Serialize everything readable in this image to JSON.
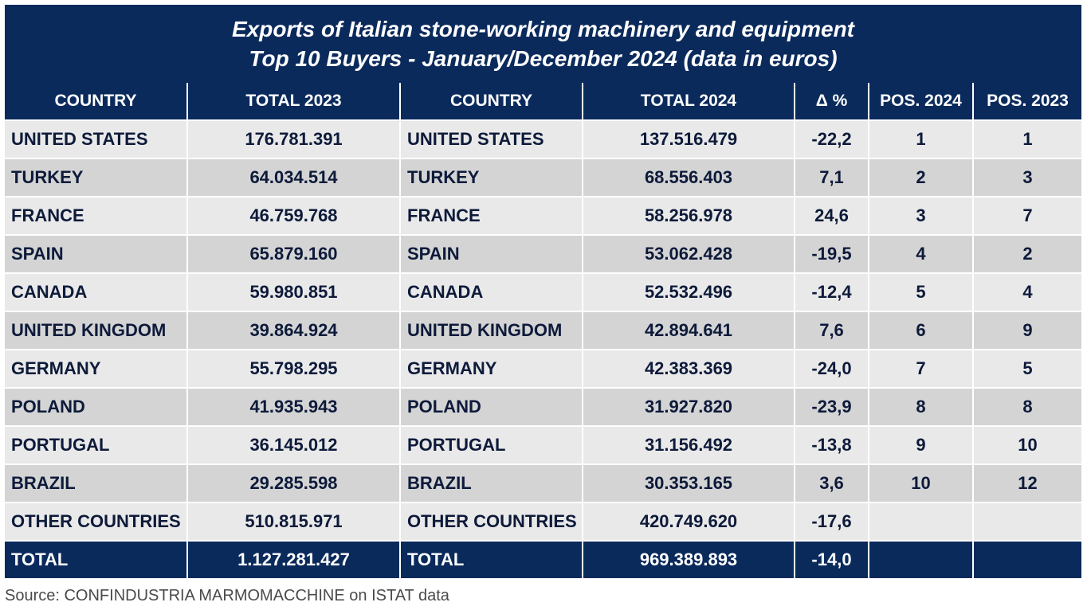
{
  "title_line1": "Exports of Italian stone-working machinery and equipment",
  "title_line2": "Top 10 Buyers - January/December 2024 (data in euros)",
  "source": "Source: CONFINDUSTRIA MARMOMACCHINE on ISTAT data",
  "colors": {
    "header_bg": "#0b2a5c",
    "row_light": "#e9e9e9",
    "row_dark": "#d4d4d4",
    "text_dark": "#0d1a3a"
  },
  "chart_data": {
    "type": "table",
    "title": "Exports of Italian stone-working machinery and equipment Top 10 Buyers - January/December 2024 (data in euros)",
    "columns": [
      "COUNTRY",
      "TOTAL 2023",
      "COUNTRY",
      "TOTAL 2024",
      "Δ %",
      "POS. 2024",
      "POS. 2023"
    ],
    "rows": [
      [
        "UNITED STATES",
        "176.781.391",
        "UNITED STATES",
        "137.516.479",
        "-22,2",
        "1",
        "1"
      ],
      [
        "TURKEY",
        "64.034.514",
        "TURKEY",
        "68.556.403",
        "7,1",
        "2",
        "3"
      ],
      [
        "FRANCE",
        "46.759.768",
        "FRANCE",
        "58.256.978",
        "24,6",
        "3",
        "7"
      ],
      [
        "SPAIN",
        "65.879.160",
        "SPAIN",
        "53.062.428",
        "-19,5",
        "4",
        "2"
      ],
      [
        "CANADA",
        "59.980.851",
        "CANADA",
        "52.532.496",
        "-12,4",
        "5",
        "4"
      ],
      [
        "UNITED KINGDOM",
        "39.864.924",
        "UNITED KINGDOM",
        "42.894.641",
        "7,6",
        "6",
        "9"
      ],
      [
        "GERMANY",
        "55.798.295",
        "GERMANY",
        "42.383.369",
        "-24,0",
        "7",
        "5"
      ],
      [
        "POLAND",
        "41.935.943",
        "POLAND",
        "31.927.820",
        "-23,9",
        "8",
        "8"
      ],
      [
        "PORTUGAL",
        "36.145.012",
        "PORTUGAL",
        "31.156.492",
        "-13,8",
        "9",
        "10"
      ],
      [
        "BRAZIL",
        "29.285.598",
        "BRAZIL",
        "30.353.165",
        "3,6",
        "10",
        "12"
      ],
      [
        "OTHER COUNTRIES",
        "510.815.971",
        "OTHER COUNTRIES",
        "420.749.620",
        "-17,6",
        "",
        ""
      ]
    ],
    "total_row": [
      "TOTAL",
      "1.127.281.427",
      "TOTAL",
      "969.389.893",
      "-14,0",
      "",
      ""
    ]
  }
}
